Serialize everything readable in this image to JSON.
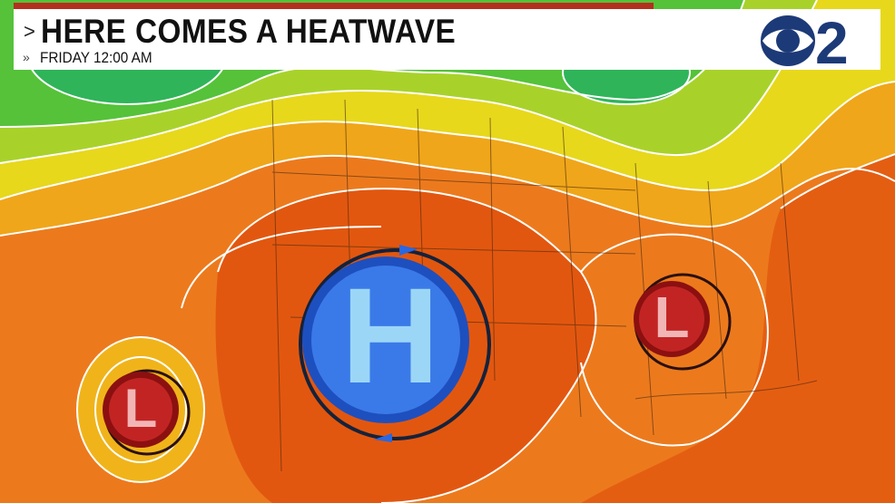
{
  "header": {
    "title": "HERE COMES A HEATWAVE",
    "subtitle": "FRIDAY  12:00 AM",
    "title_chevron": ">",
    "subtitle_chevron": "»",
    "logo_text": "CBS 2"
  },
  "map": {
    "pressure_systems": [
      {
        "type": "high",
        "label": "H",
        "color": "#2f6de0"
      },
      {
        "type": "low",
        "label": "L",
        "color": "#b01c1c"
      },
      {
        "type": "low",
        "label": "L",
        "color": "#b01c1c"
      }
    ],
    "colors": {
      "hot": "#e2570f",
      "warm": "#ec7a1d",
      "mild": "#f0b41a",
      "cool": "#e6e31d",
      "cold": "#3fbf3a",
      "banner_accent": "#b3301e",
      "logo": "#1d3a78"
    }
  }
}
